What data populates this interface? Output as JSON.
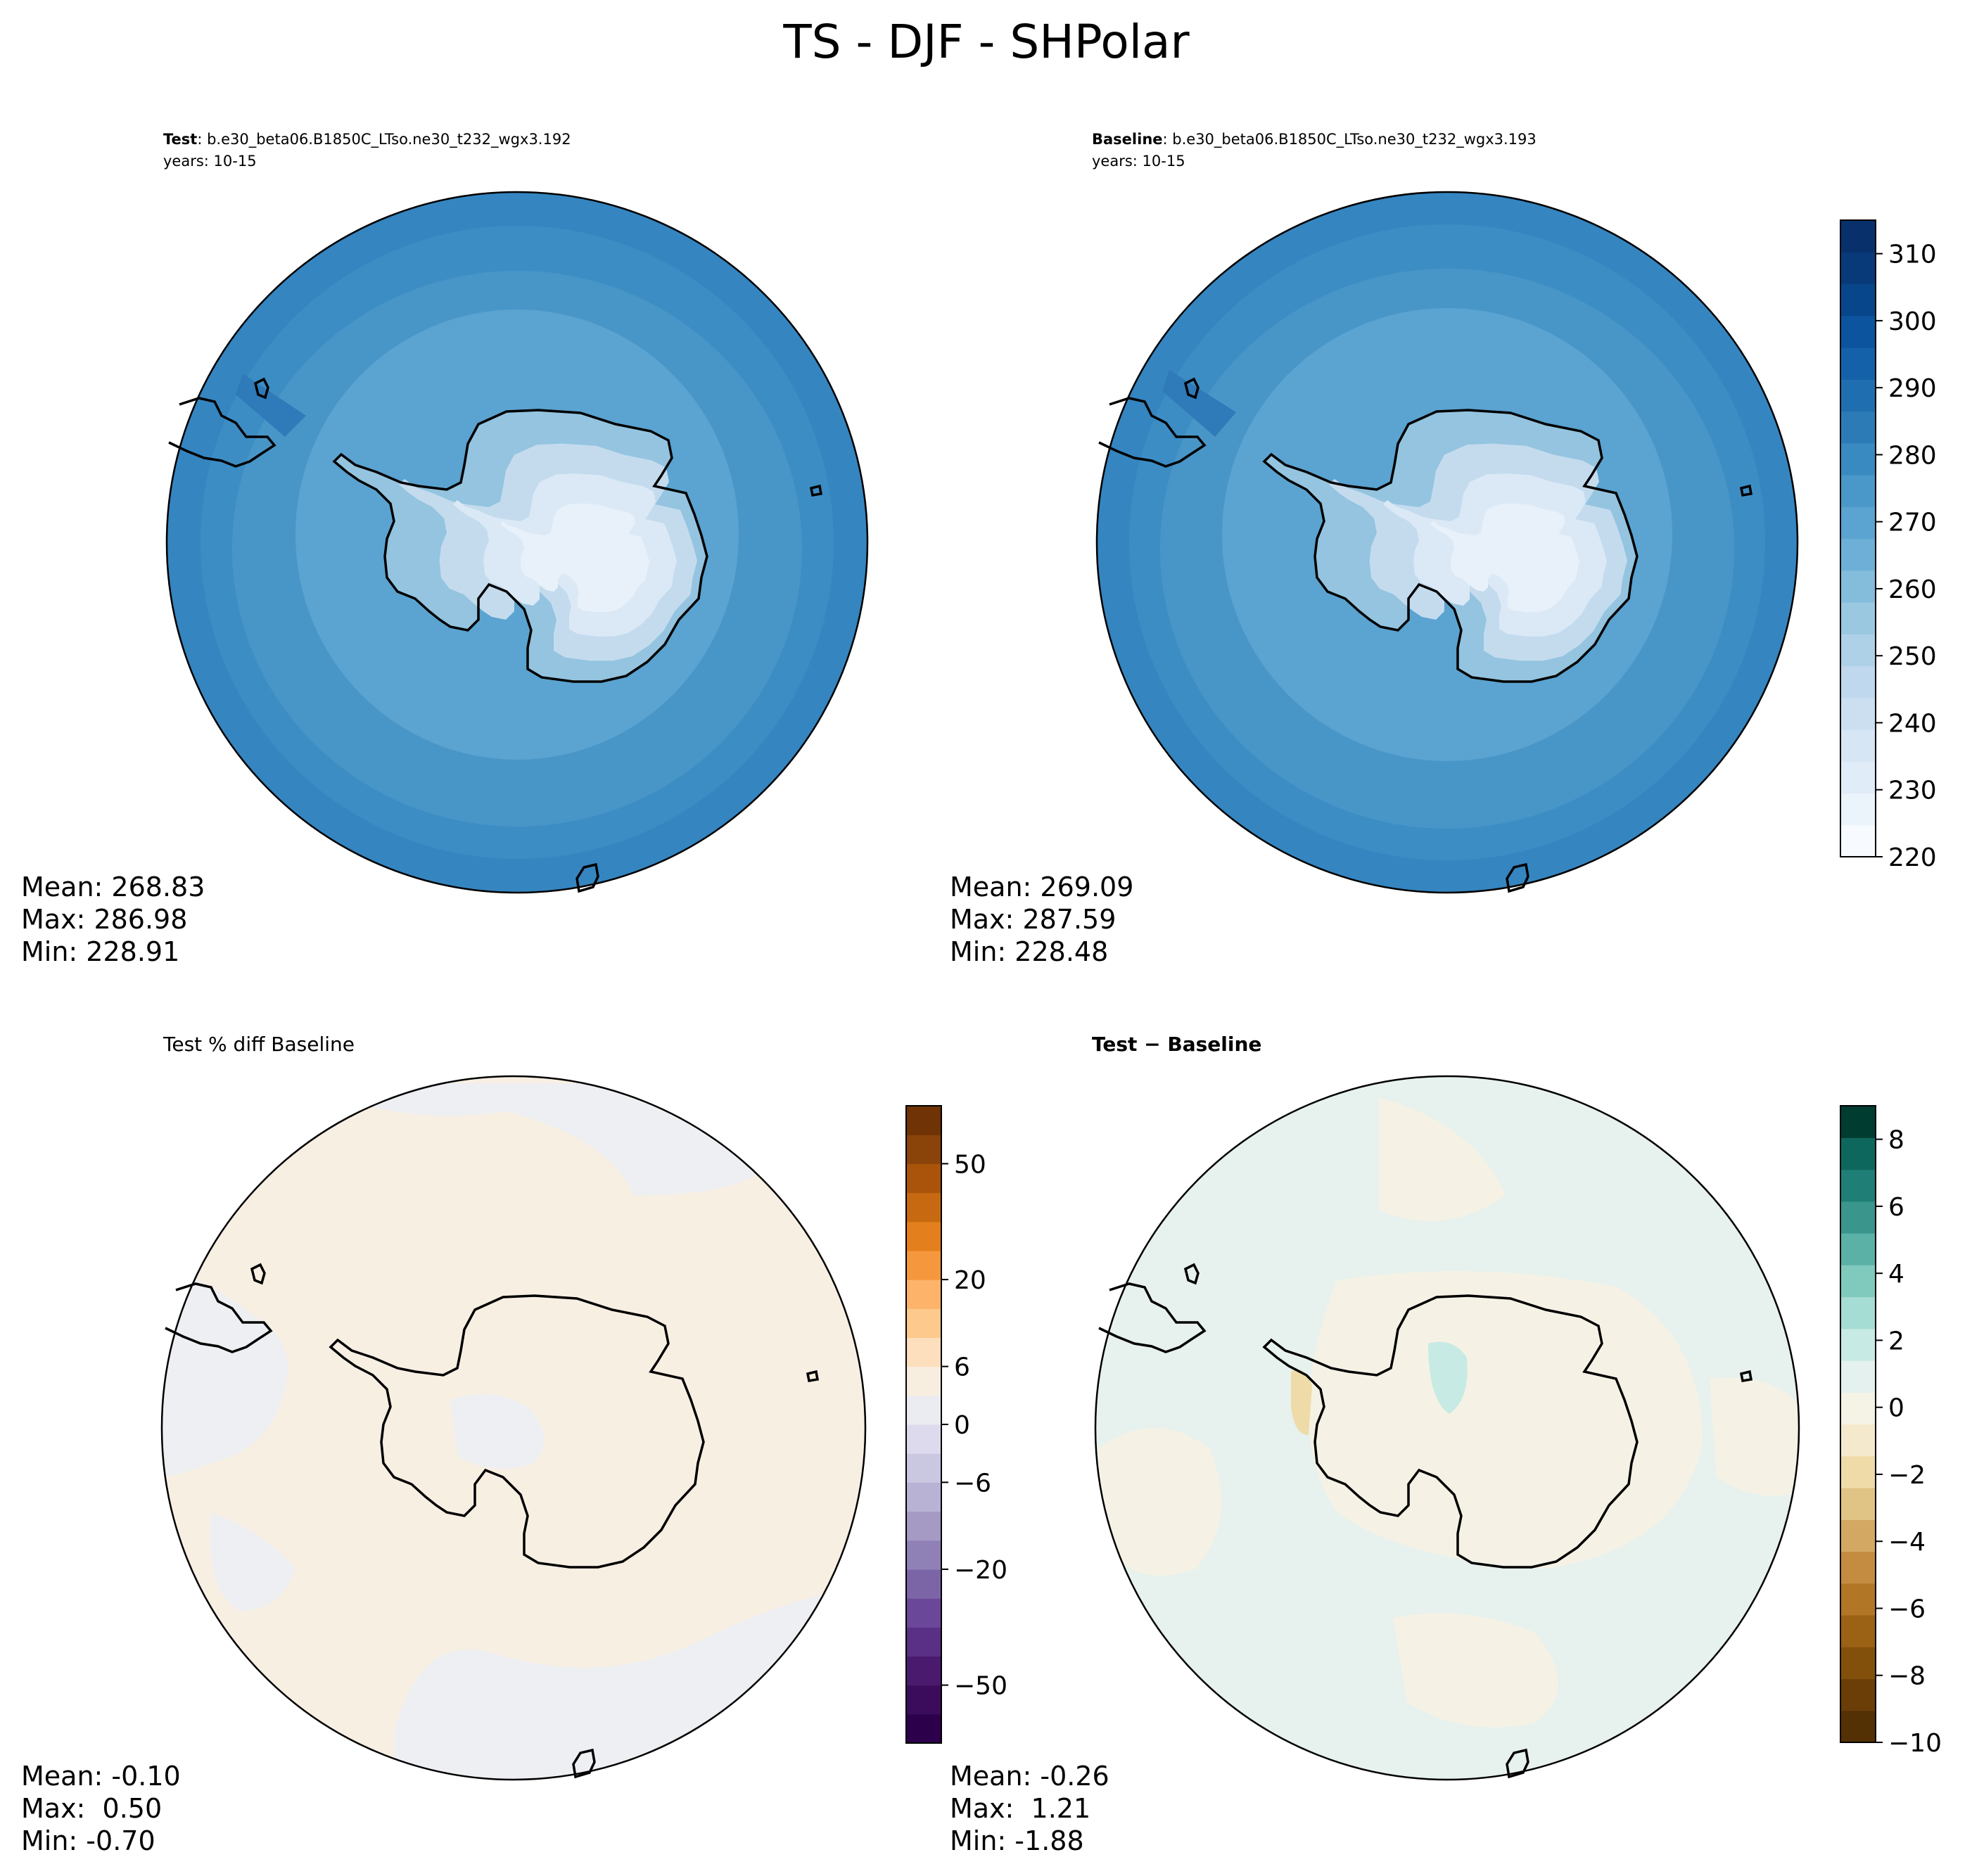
{
  "figure": {
    "title": "TS - DJF - SHPolar"
  },
  "colors": {
    "coastline": "#000000",
    "temperature_cmap": "Blues",
    "pct_diff_cmap": "PuOr_r",
    "diff_cmap": "BrBG"
  },
  "chart_data": [
    {
      "type": "heatmap",
      "projection": "south-polar-stereographic",
      "subtitle_bold": "Test",
      "subtitle": ": b.e30_beta06.B1850C_LTso.ne30_t232_wgx3.192",
      "subtitle_line2": "years: 10-15",
      "stats": {
        "mean": "Mean: 268.83",
        "max": "Max: 286.98",
        "min": "Min: 228.91"
      },
      "field": "temperature",
      "value_ranges": {
        "ocean_far": [
          280,
          290
        ],
        "ocean_mid": [
          270,
          280
        ],
        "ocean_near": [
          260,
          270
        ],
        "continent": [
          220,
          260
        ]
      }
    },
    {
      "type": "heatmap",
      "projection": "south-polar-stereographic",
      "subtitle_bold": "Baseline",
      "subtitle": ": b.e30_beta06.B1850C_LTso.ne30_t232_wgx3.193",
      "subtitle_line2": "years: 10-15",
      "stats": {
        "mean": "Mean: 269.09",
        "max": "Max: 287.59",
        "min": "Min: 228.48"
      },
      "field": "temperature",
      "colorbar": {
        "levels": [
          220,
          225,
          230,
          235,
          240,
          245,
          250,
          255,
          260,
          265,
          270,
          275,
          280,
          285,
          290,
          295,
          300,
          305,
          310,
          315
        ],
        "ticks": [
          "220",
          "230",
          "240",
          "250",
          "260",
          "270",
          "280",
          "290",
          "300",
          "310"
        ],
        "colors": [
          "#f7fbff",
          "#ebf3fb",
          "#e0ecf8",
          "#d6e6f4",
          "#cbdff1",
          "#bfd8ed",
          "#afd1e7",
          "#9ac8e0",
          "#84bcdb",
          "#6dafd7",
          "#5ba3d0",
          "#4a98c9",
          "#3a8ac2",
          "#2c7bb6",
          "#1f6eb0",
          "#1561a9",
          "#0c549e",
          "#08468b",
          "#083a7a",
          "#08306b"
        ]
      }
    },
    {
      "type": "heatmap",
      "projection": "south-polar-stereographic",
      "subtitle": "Test % diff Baseline",
      "stats": {
        "mean": "Mean: -0.10",
        "max": "Max:  0.50",
        "min": "Min: -0.70"
      },
      "field": "percent-difference",
      "colorbar": {
        "ticks": [
          "−50",
          "−20",
          "−6",
          "0",
          "6",
          "20",
          "50"
        ],
        "colors": [
          "#2d004b",
          "#3b0c5c",
          "#4a1a6e",
          "#5a2f86",
          "#6b4799",
          "#7c65a7",
          "#8f80b5",
          "#a49ac4",
          "#b8b2d4",
          "#cac7e1",
          "#dcdaec",
          "#ebebf2",
          "#f8eee0",
          "#fddfbd",
          "#fdc98d",
          "#fdb36a",
          "#f5973d",
          "#e37f1c",
          "#c76911",
          "#a9540a",
          "#8a4308",
          "#6f3306"
        ]
      }
    },
    {
      "type": "heatmap",
      "projection": "south-polar-stereographic",
      "subtitle": "$\\mathbf{Test} - \\mathbf{Baseline}$",
      "subtitle_bold": "Test − Baseline",
      "stats": {
        "mean": "Mean: -0.26",
        "max": "Max:  1.21",
        "min": "Min: -1.88"
      },
      "field": "difference",
      "colorbar": {
        "levels": [
          -10,
          -9,
          -8,
          -7,
          -6,
          -5,
          -4,
          -3,
          -2,
          -1,
          0,
          1,
          2,
          3,
          4,
          5,
          6,
          7,
          8,
          9
        ],
        "ticks": [
          "−10",
          "−8",
          "−6",
          "−4",
          "−2",
          "0",
          "2",
          "4",
          "6",
          "8"
        ],
        "colors": [
          "#543005",
          "#6b3e08",
          "#83500b",
          "#9b6115",
          "#b27627",
          "#c48c41",
          "#d3a862",
          "#e0c485",
          "#eedba8",
          "#f4e9cc",
          "#f5f2e6",
          "#e4f1ee",
          "#c7eae4",
          "#a5dcd3",
          "#80c9bd",
          "#5cb1a6",
          "#3a968d",
          "#1f7e75",
          "#0e675d",
          "#003c30"
        ]
      }
    }
  ]
}
